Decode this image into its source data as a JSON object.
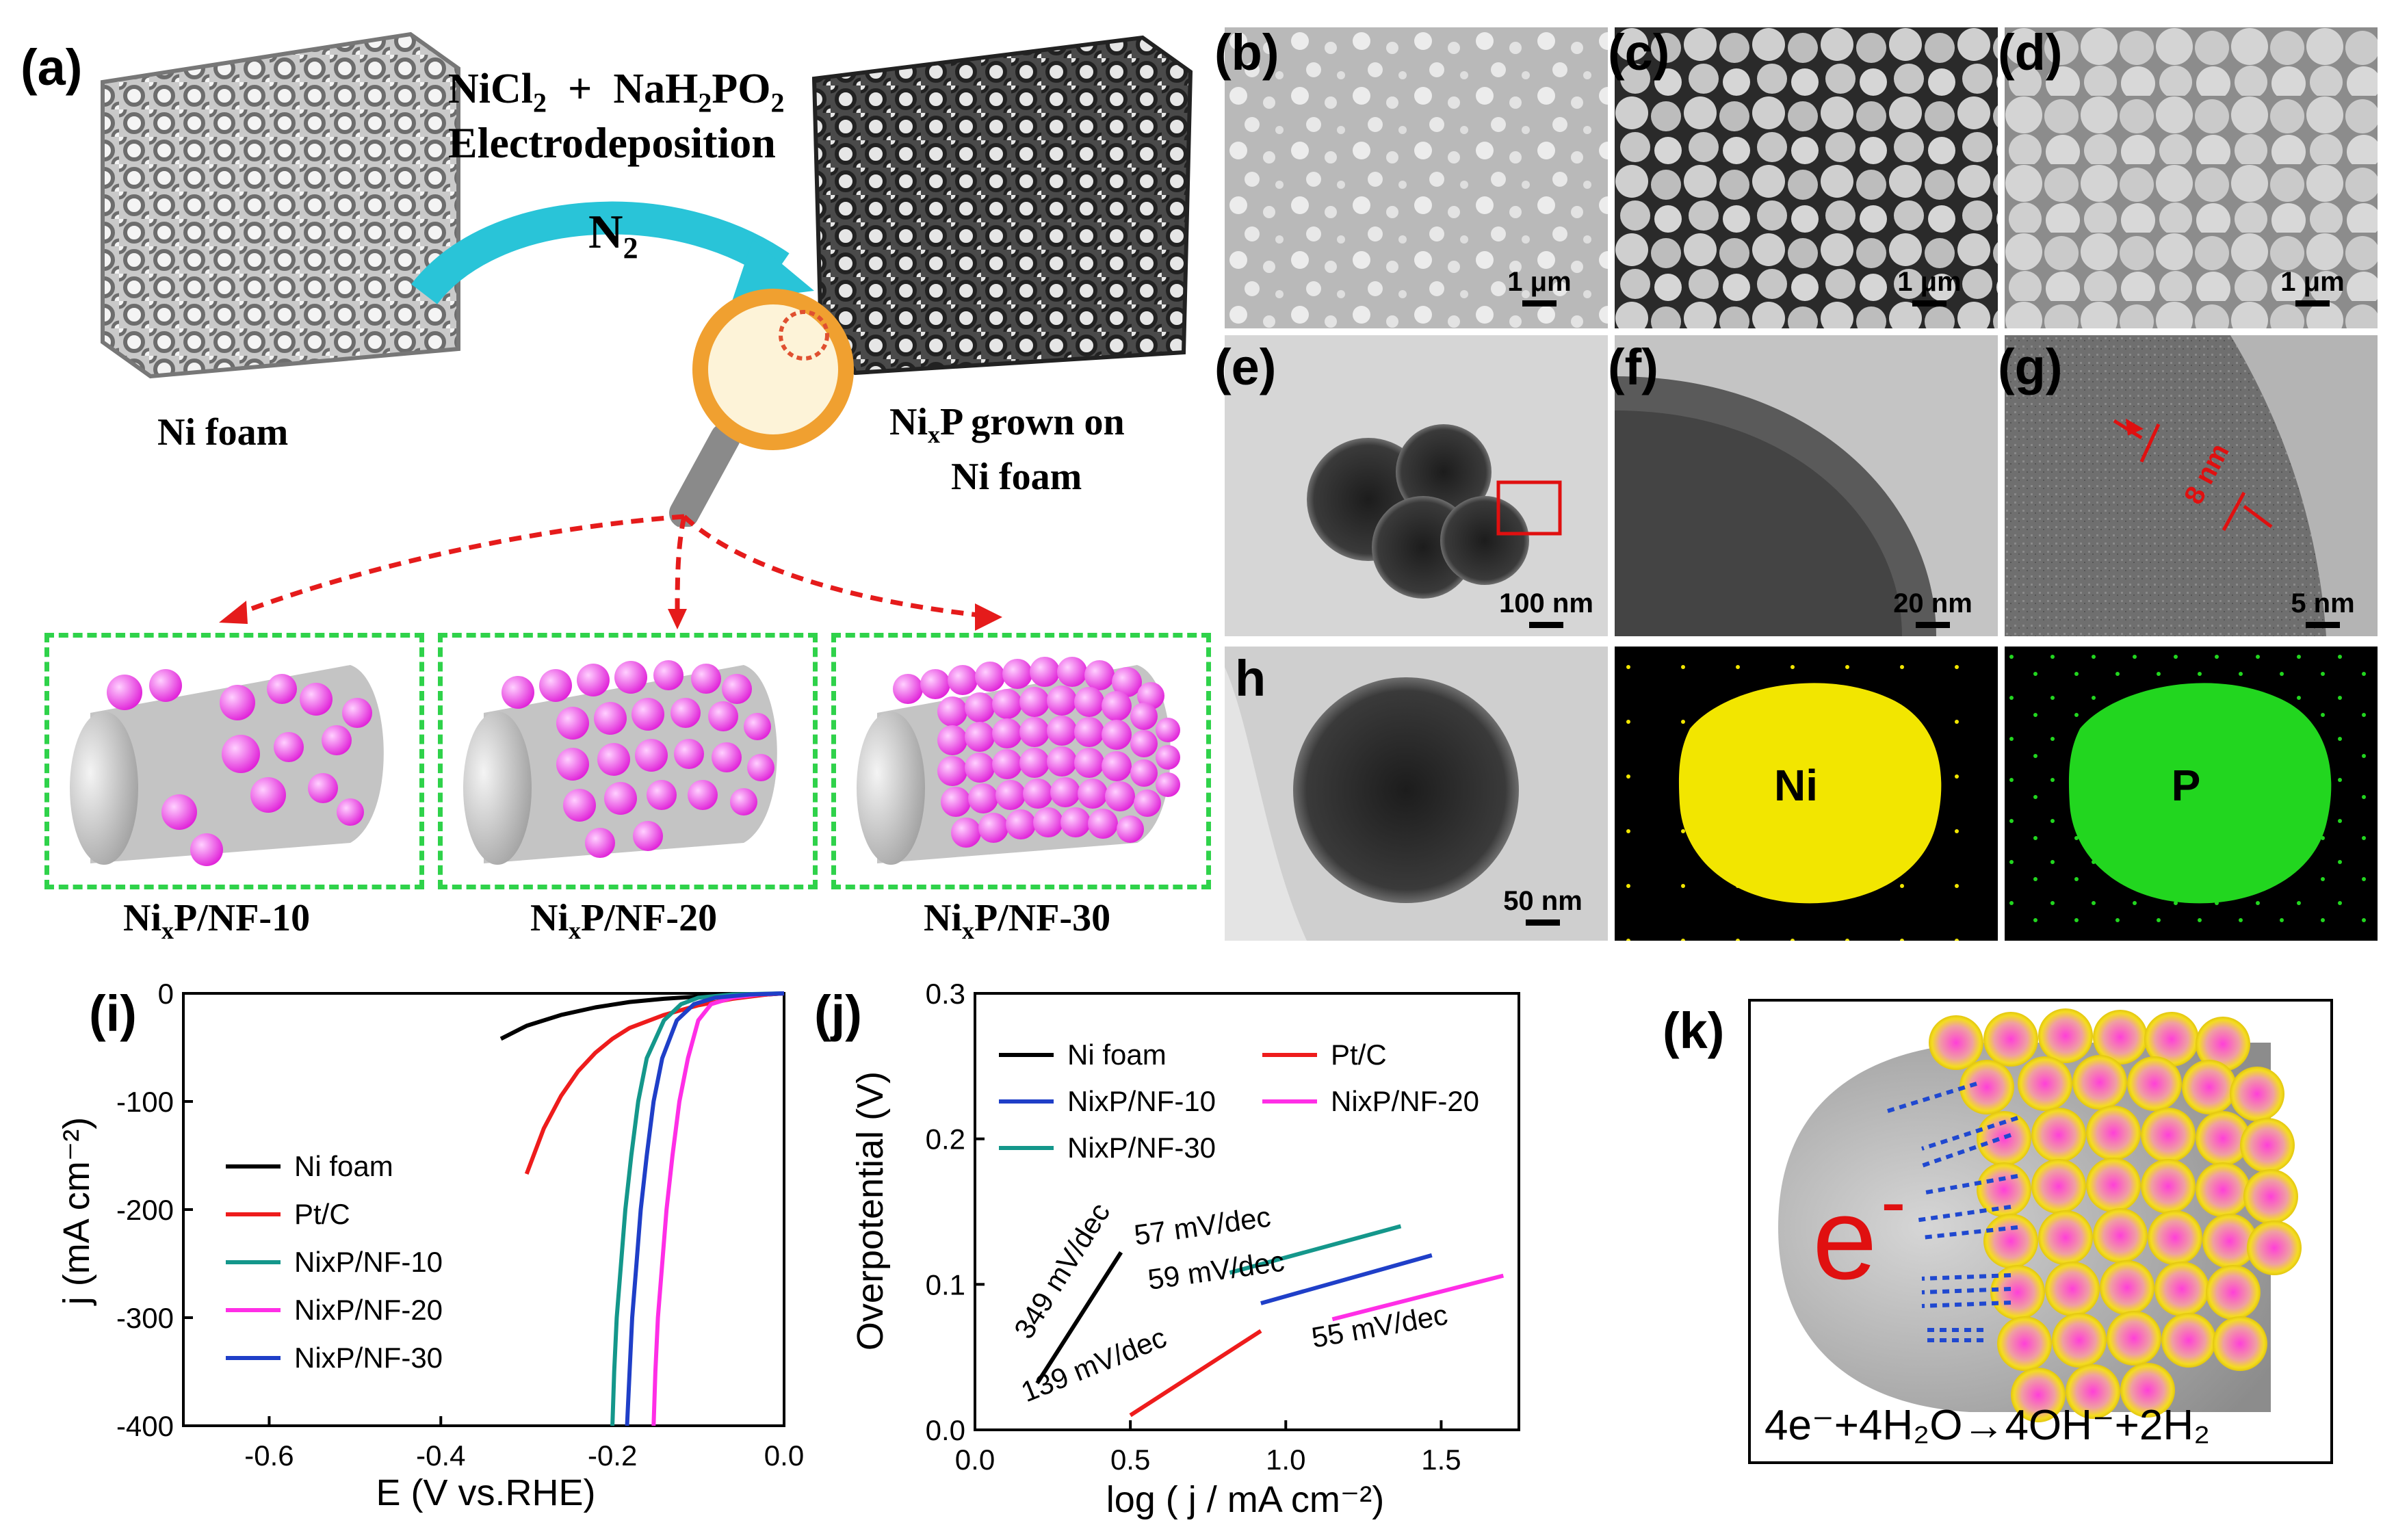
{
  "panel_labels": {
    "a": "(a)",
    "b": "(b)",
    "c": "(c)",
    "d": "(d)",
    "e": "(e)",
    "f": "(f)",
    "g": "(g)",
    "h": "h",
    "i": "(i)",
    "j": "(j)",
    "k": "(k)"
  },
  "schematic": {
    "reagent_1": "NiCl",
    "reagent_1_sub": "2",
    "plus": "+",
    "reagent_2a": "NaH",
    "reagent_2_sub1": "2",
    "reagent_2b": "PO",
    "reagent_2_sub2": "2",
    "process": "Electrodeposition",
    "gas": "N",
    "gas_sub": "2",
    "left_label": "Ni foam",
    "right_label_a": "Ni",
    "right_label_sub": "x",
    "right_label_b": "P grown on",
    "right_label_c": "Ni foam",
    "samples": [
      {
        "pre": "Ni",
        "sub": "x",
        "post": "P/NF-10"
      },
      {
        "pre": "Ni",
        "sub": "x",
        "post": "P/NF-20"
      },
      {
        "pre": "Ni",
        "sub": "x",
        "post": "P/NF-30"
      }
    ]
  },
  "micrographs": {
    "b_scale": "1 μm",
    "c_scale": "1 μm",
    "d_scale": "1 μm",
    "e_scale": "100 nm",
    "f_scale": "20 nm",
    "g_scale": "5 nm",
    "g_annotation": "8 nm",
    "h_scale": "50 nm",
    "map_ni": "Ni",
    "map_p": "P",
    "colors": {
      "ni_map": "#f2e600",
      "p_map": "#22d61f",
      "annotation": "#e01010"
    }
  },
  "chart_data": [
    {
      "type": "line",
      "panel": "i",
      "xlabel": "E (V vs.RHE)",
      "ylabel": "j (mA cm⁻²)",
      "xlim": [
        -0.7,
        0.0
      ],
      "ylim": [
        -400,
        0
      ],
      "xticks": [
        "-0.6",
        "-0.4",
        "-0.2",
        "0.0"
      ],
      "yticks": [
        "0",
        "-100",
        "-200",
        "-300",
        "-400"
      ],
      "legend_position": "left-center",
      "series": [
        {
          "name": "Ni foam",
          "color": "#000000",
          "x": [
            -0.33,
            -0.3,
            -0.26,
            -0.22,
            -0.18,
            -0.14,
            -0.1,
            -0.06,
            -0.02,
            0.0
          ],
          "y": [
            -42,
            -30,
            -20,
            -13,
            -8,
            -5,
            -3,
            -2,
            -1,
            0
          ]
        },
        {
          "name": "Pt/C",
          "color": "#ee1c1c",
          "x": [
            -0.3,
            -0.28,
            -0.26,
            -0.24,
            -0.22,
            -0.2,
            -0.18,
            -0.14,
            -0.1,
            -0.06,
            -0.02,
            0.0
          ],
          "y": [
            -167,
            -125,
            -95,
            -72,
            -55,
            -42,
            -32,
            -20,
            -11,
            -5,
            -1,
            0
          ]
        },
        {
          "name": "NixP/NF-10",
          "color": "#14978b",
          "x": [
            -0.2,
            -0.198,
            -0.195,
            -0.19,
            -0.185,
            -0.178,
            -0.17,
            -0.16,
            -0.14,
            -0.12,
            -0.1,
            -0.06,
            0.0
          ],
          "y": [
            -400,
            -350,
            -300,
            -250,
            -200,
            -150,
            -100,
            -60,
            -25,
            -10,
            -4,
            -1,
            0
          ]
        },
        {
          "name": "NixP/NF-20",
          "color": "#ff2ee6",
          "x": [
            -0.152,
            -0.15,
            -0.147,
            -0.142,
            -0.137,
            -0.13,
            -0.122,
            -0.112,
            -0.1,
            -0.085,
            -0.06,
            -0.03,
            0.0
          ],
          "y": [
            -400,
            -350,
            -300,
            -250,
            -200,
            -150,
            -100,
            -60,
            -25,
            -10,
            -4,
            -1,
            0
          ]
        },
        {
          "name": "NixP/NF-30",
          "color": "#1f3fc8",
          "x": [
            -0.183,
            -0.18,
            -0.177,
            -0.172,
            -0.167,
            -0.16,
            -0.152,
            -0.142,
            -0.125,
            -0.105,
            -0.08,
            -0.04,
            0.0
          ],
          "y": [
            -400,
            -350,
            -300,
            -250,
            -200,
            -150,
            -100,
            -60,
            -25,
            -10,
            -4,
            -1,
            0
          ]
        }
      ]
    },
    {
      "type": "line",
      "panel": "j",
      "xlabel": "log ( j / mA cm⁻²)",
      "ylabel": "Overpotential (V)",
      "xlim": [
        0.0,
        1.75
      ],
      "ylim": [
        0.0,
        0.3
      ],
      "xticks": [
        "0.0",
        "0.5",
        "1.0",
        "1.5"
      ],
      "yticks": [
        "0.0",
        "0.1",
        "0.2",
        "0.3"
      ],
      "legend_position": "top",
      "series": [
        {
          "name": "Ni foam",
          "color": "#000000",
          "x": [
            0.2,
            0.47
          ],
          "y": [
            0.032,
            0.122
          ]
        },
        {
          "name": "Pt/C",
          "color": "#ee1c1c",
          "x": [
            0.5,
            0.92
          ],
          "y": [
            0.01,
            0.068
          ]
        },
        {
          "name": "NixP/NF-10",
          "color": "#1f3fc8",
          "x": [
            0.92,
            1.47
          ],
          "y": [
            0.087,
            0.12
          ]
        },
        {
          "name": "NixP/NF-20",
          "color": "#ff2ee6",
          "x": [
            1.15,
            1.7
          ],
          "y": [
            0.076,
            0.106
          ]
        },
        {
          "name": "NixP/NF-30",
          "color": "#14978b",
          "x": [
            0.82,
            1.37
          ],
          "y": [
            0.108,
            0.14
          ]
        }
      ],
      "annotations": [
        "349 mV/dec",
        "139 mV/dec",
        "57 mV/dec",
        "59 mV/dec",
        "55 mV/dec"
      ]
    }
  ],
  "panel_k": {
    "electron": "e",
    "electron_sup": "-",
    "equation": "4e⁻+4H₂O→4OH⁻+2H₂"
  }
}
